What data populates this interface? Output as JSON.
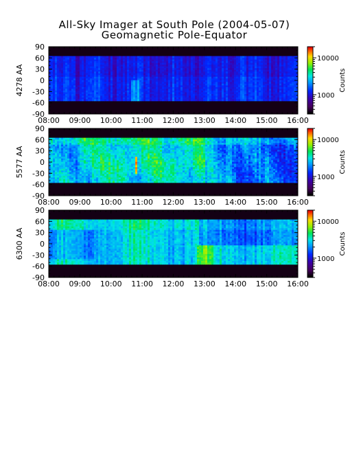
{
  "chart_data": {
    "type": "heatmap",
    "title": "All-Sky Imager at South Pole (2004-05-07)",
    "subtitle": "Geomagnetic Pole-Equator",
    "x_ticks": [
      "08:00",
      "09:00",
      "10:00",
      "11:00",
      "12:00",
      "13:00",
      "14:00",
      "15:00",
      "16:00"
    ],
    "xlim": [
      "08:00",
      "16:00"
    ],
    "y_ticks": [
      90,
      60,
      30,
      0,
      -30,
      -60,
      -90
    ],
    "ylim": [
      -90,
      90
    ],
    "colorscale": "rainbow (black-purple-blue-cyan-green-yellow-red)",
    "colorbar_scale": "log",
    "panels": [
      {
        "ylabel": "4278 AA",
        "data_range_deg": [
          -55,
          65
        ],
        "colorbar_ticks": [
          10000,
          1000
        ],
        "colorbar_label": "Counts",
        "dominant_level": "blue-purple (~1000 counts)",
        "features": [
          {
            "time": "10:49",
            "note": "narrow cyan arc"
          },
          {
            "time": "12:40",
            "note": "faint cyan streak"
          }
        ]
      },
      {
        "ylabel": "5577 AA",
        "data_range_deg": [
          -55,
          65
        ],
        "colorbar_ticks": [
          10000,
          1000
        ],
        "colorbar_label": "Counts",
        "dominant_level": "cyan-blue, green-yellow streaks 09:00-13:00",
        "features": [
          {
            "time": "10:48",
            "note": "yellow/red peak near -40 to 0 deg"
          }
        ]
      },
      {
        "ylabel": "6300 AA",
        "data_range_deg": [
          -55,
          65
        ],
        "colorbar_ticks": [
          10000,
          1000
        ],
        "colorbar_label": "Counts",
        "dominant_level": "cyan-green, blue pole-side after 13:00",
        "features": [
          {
            "time": "12:55",
            "note": "green enhancement near -50 to -20 deg"
          }
        ]
      }
    ]
  }
}
